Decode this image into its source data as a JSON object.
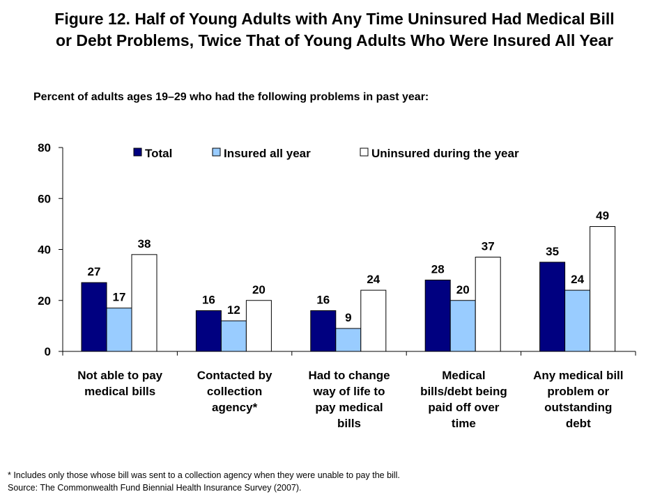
{
  "title_line1": "Figure 12. Half of Young Adults with Any Time Uninsured Had Medical Bill",
  "title_line2": "or Debt Problems, Twice That of Young Adults Who Were Insured All Year",
  "subtitle": "Percent of adults ages 19–29 who had the following problems in past year:",
  "footnote_line1": "* Includes only those whose bill was sent to a collection agency when they were unable to pay the bill.",
  "footnote_line2": "Source: The Commonwealth Fund Biennial Health Insurance Survey (2007).",
  "chart_data": {
    "type": "bar",
    "categories": [
      [
        "Not able to pay",
        "medical bills"
      ],
      [
        "Contacted by",
        "collection",
        "agency*"
      ],
      [
        "Had to change",
        "way of life to",
        "pay medical",
        "bills"
      ],
      [
        "Medical",
        "bills/debt being",
        "paid off over",
        "time"
      ],
      [
        "Any medical bill",
        "problem or",
        "outstanding",
        "debt"
      ]
    ],
    "series": [
      {
        "name": "Total",
        "color": "#000080",
        "values": [
          27,
          16,
          16,
          28,
          35
        ]
      },
      {
        "name": "Insured all year",
        "color": "#99CCFF",
        "values": [
          17,
          12,
          9,
          20,
          24
        ]
      },
      {
        "name": "Uninsured during the year",
        "color": "#FFFFFF",
        "values": [
          38,
          20,
          24,
          37,
          49
        ]
      }
    ],
    "ylim": [
      0,
      80
    ],
    "yticks": [
      0,
      20,
      40,
      60,
      80
    ],
    "legend_position": "top",
    "grid": false
  }
}
